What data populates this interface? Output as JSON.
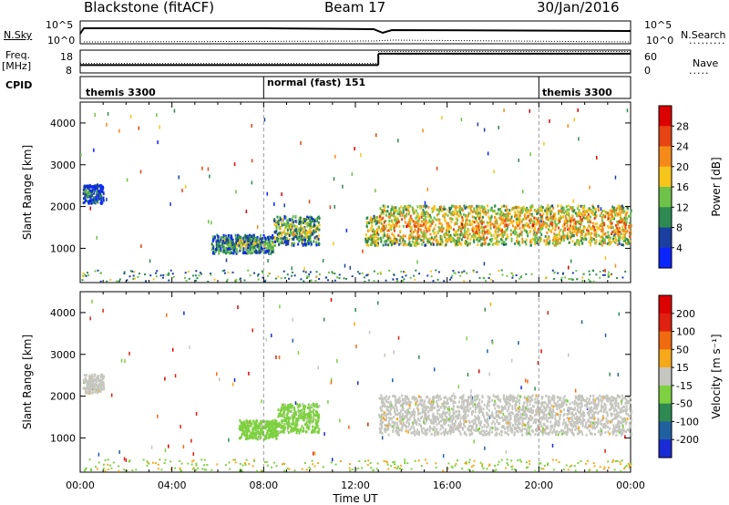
{
  "header": {
    "left": "Blackstone (fitACF)",
    "center": "Beam 17",
    "right": "30/Jan/2016"
  },
  "ancillary": {
    "nsky_label": "N.Sky",
    "nsearch_label": "N.Search",
    "freq_label_1": "Freq.",
    "freq_label_2": "[MHz]",
    "nave_label": "Nave",
    "cpid_label": "CPID",
    "noise_ticks": [
      "10^5",
      "10^0"
    ],
    "freq_ticks": [
      "18",
      "8"
    ],
    "nave_ticks": [
      "60",
      "0"
    ],
    "cpid_segments": [
      {
        "label": "themis 3300",
        "start_hour": 0,
        "end_hour": 8
      },
      {
        "label": "normal (fast) 151",
        "start_hour": 8,
        "end_hour": 20
      },
      {
        "label": "themis 3300",
        "start_hour": 20,
        "end_hour": 24
      }
    ],
    "freq_mhz": [
      {
        "start_hour": 0,
        "end_hour": 13,
        "value": 10.5
      },
      {
        "start_hour": 13,
        "end_hour": 24,
        "value": 17
      }
    ],
    "nave": [
      {
        "start_hour": 0,
        "end_hour": 13,
        "value": 25
      },
      {
        "start_hour": 13,
        "end_hour": 24,
        "value": 60
      }
    ]
  },
  "colors": {
    "power_scale": [
      "#0a24ff",
      "#1a3fa0",
      "#2e8a52",
      "#6ec24a",
      "#f7c41a",
      "#f58a1a",
      "#e64412",
      "#dd0000"
    ],
    "velocity_scale": [
      "#1a2bd6",
      "#2060a0",
      "#2e8a52",
      "#7ed040",
      "#c6c6c0",
      "#f5a81a",
      "#f06a10",
      "#e02010",
      "#dd0000"
    ]
  },
  "chart_data": [
    {
      "type": "heatmap",
      "name": "power",
      "xlabel": "",
      "ylabel": "Slant Range [km]",
      "colorbar_label": "Power [dB]",
      "colorbar_ticks": [
        "28",
        "24",
        "20",
        "16",
        "12",
        "8",
        "4"
      ],
      "colorbar_range": [
        0,
        30
      ],
      "x_range_hours": [
        0,
        24
      ],
      "ylim": [
        180,
        4500
      ],
      "y_ticks": [
        "4000",
        "3000",
        "2000",
        "1000"
      ],
      "y_tick_values": [
        4000,
        3000,
        2000,
        1000
      ],
      "regions": [
        {
          "t0": 0.1,
          "t1": 1.0,
          "r0": 2100,
          "r1": 2550,
          "value": 8
        },
        {
          "t0": 5.7,
          "t1": 8.4,
          "r0": 900,
          "r1": 1350,
          "value": 12
        },
        {
          "t0": 8.4,
          "t1": 10.4,
          "r0": 1100,
          "r1": 1800,
          "value": 14
        },
        {
          "t0": 12.4,
          "t1": 13.0,
          "r0": 1100,
          "r1": 1800,
          "value": 18
        },
        {
          "t0": 13.0,
          "t1": 24.0,
          "r0": 1100,
          "r1": 2050,
          "value": 20
        }
      ]
    },
    {
      "type": "heatmap",
      "name": "velocity",
      "xlabel": "Time UT",
      "ylabel": "Slant Range [km]",
      "colorbar_label": "Velocity [m s⁻¹]",
      "colorbar_ticks": [
        "200",
        "100",
        "50",
        "15",
        "-15",
        "-50",
        "-100",
        "-200"
      ],
      "colorbar_range": [
        -250,
        250
      ],
      "x_range_hours": [
        0,
        24
      ],
      "ylim": [
        180,
        4500
      ],
      "y_ticks": [
        "4000",
        "3000",
        "2000",
        "1000"
      ],
      "y_tick_values": [
        4000,
        3000,
        2000,
        1000
      ],
      "x_ticks": [
        "00:00",
        "04:00",
        "08:00",
        "12:00",
        "16:00",
        "20:00",
        "00:00"
      ],
      "regions": [
        {
          "t0": 0.1,
          "t1": 1.0,
          "r0": 2100,
          "r1": 2550,
          "value": 0
        },
        {
          "t0": 6.9,
          "t1": 8.6,
          "r0": 1000,
          "r1": 1450,
          "value": -40
        },
        {
          "t0": 8.6,
          "t1": 10.4,
          "r0": 1150,
          "r1": 1850,
          "value": -35
        },
        {
          "t0": 13.0,
          "t1": 24.0,
          "r0": 1100,
          "r1": 2050,
          "value": 0
        }
      ]
    }
  ]
}
